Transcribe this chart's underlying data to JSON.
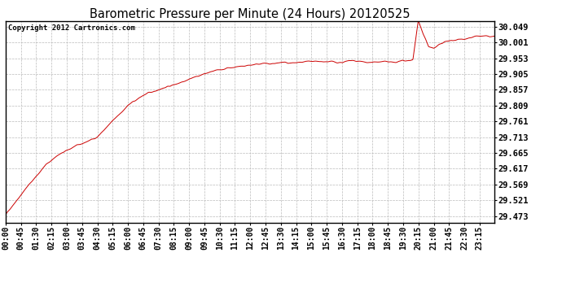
{
  "title": "Barometric Pressure per Minute (24 Hours) 20120525",
  "copyright_text": "Copyright 2012 Cartronics.com",
  "line_color": "#cc0000",
  "background_color": "#ffffff",
  "plot_bg_color": "#ffffff",
  "grid_color": "#bbbbbb",
  "yticks": [
    29.473,
    29.521,
    29.569,
    29.617,
    29.665,
    29.713,
    29.761,
    29.809,
    29.857,
    29.905,
    29.953,
    30.001,
    30.049
  ],
  "ylim": [
    29.453,
    30.065
  ],
  "xtick_labels": [
    "00:00",
    "00:45",
    "01:30",
    "02:15",
    "03:00",
    "03:45",
    "04:30",
    "05:15",
    "06:00",
    "06:45",
    "07:30",
    "08:15",
    "09:00",
    "09:45",
    "10:30",
    "11:15",
    "12:00",
    "12:45",
    "13:30",
    "14:15",
    "15:00",
    "15:45",
    "16:30",
    "17:15",
    "18:00",
    "18:45",
    "19:30",
    "20:15",
    "21:00",
    "21:45",
    "22:30",
    "23:15"
  ],
  "key_t": [
    0,
    0.01,
    0.022,
    0.042,
    0.063,
    0.083,
    0.104,
    0.135,
    0.167,
    0.188,
    0.219,
    0.25,
    0.281,
    0.313,
    0.344,
    0.375,
    0.396,
    0.417,
    0.438,
    0.458,
    0.479,
    0.5,
    0.521,
    0.542,
    0.563,
    0.583,
    0.604,
    0.625,
    0.646,
    0.667,
    0.688,
    0.708,
    0.729,
    0.75,
    0.771,
    0.792,
    0.813,
    0.833,
    0.844,
    0.854,
    0.865,
    0.875,
    0.885,
    0.896,
    0.906,
    0.927,
    0.948,
    0.969,
    1.0
  ],
  "key_v": [
    29.476,
    29.498,
    29.52,
    29.558,
    29.595,
    29.63,
    29.655,
    29.68,
    29.7,
    29.714,
    29.762,
    29.809,
    29.84,
    29.858,
    29.872,
    29.89,
    29.9,
    29.91,
    29.918,
    29.924,
    29.928,
    29.932,
    29.937,
    29.935,
    29.94,
    29.938,
    29.94,
    29.942,
    29.943,
    29.942,
    29.94,
    29.945,
    29.942,
    29.94,
    29.942,
    29.94,
    29.945,
    29.948,
    30.068,
    30.025,
    29.99,
    29.983,
    29.992,
    30.002,
    30.005,
    30.01,
    30.015,
    30.02,
    30.018
  ]
}
